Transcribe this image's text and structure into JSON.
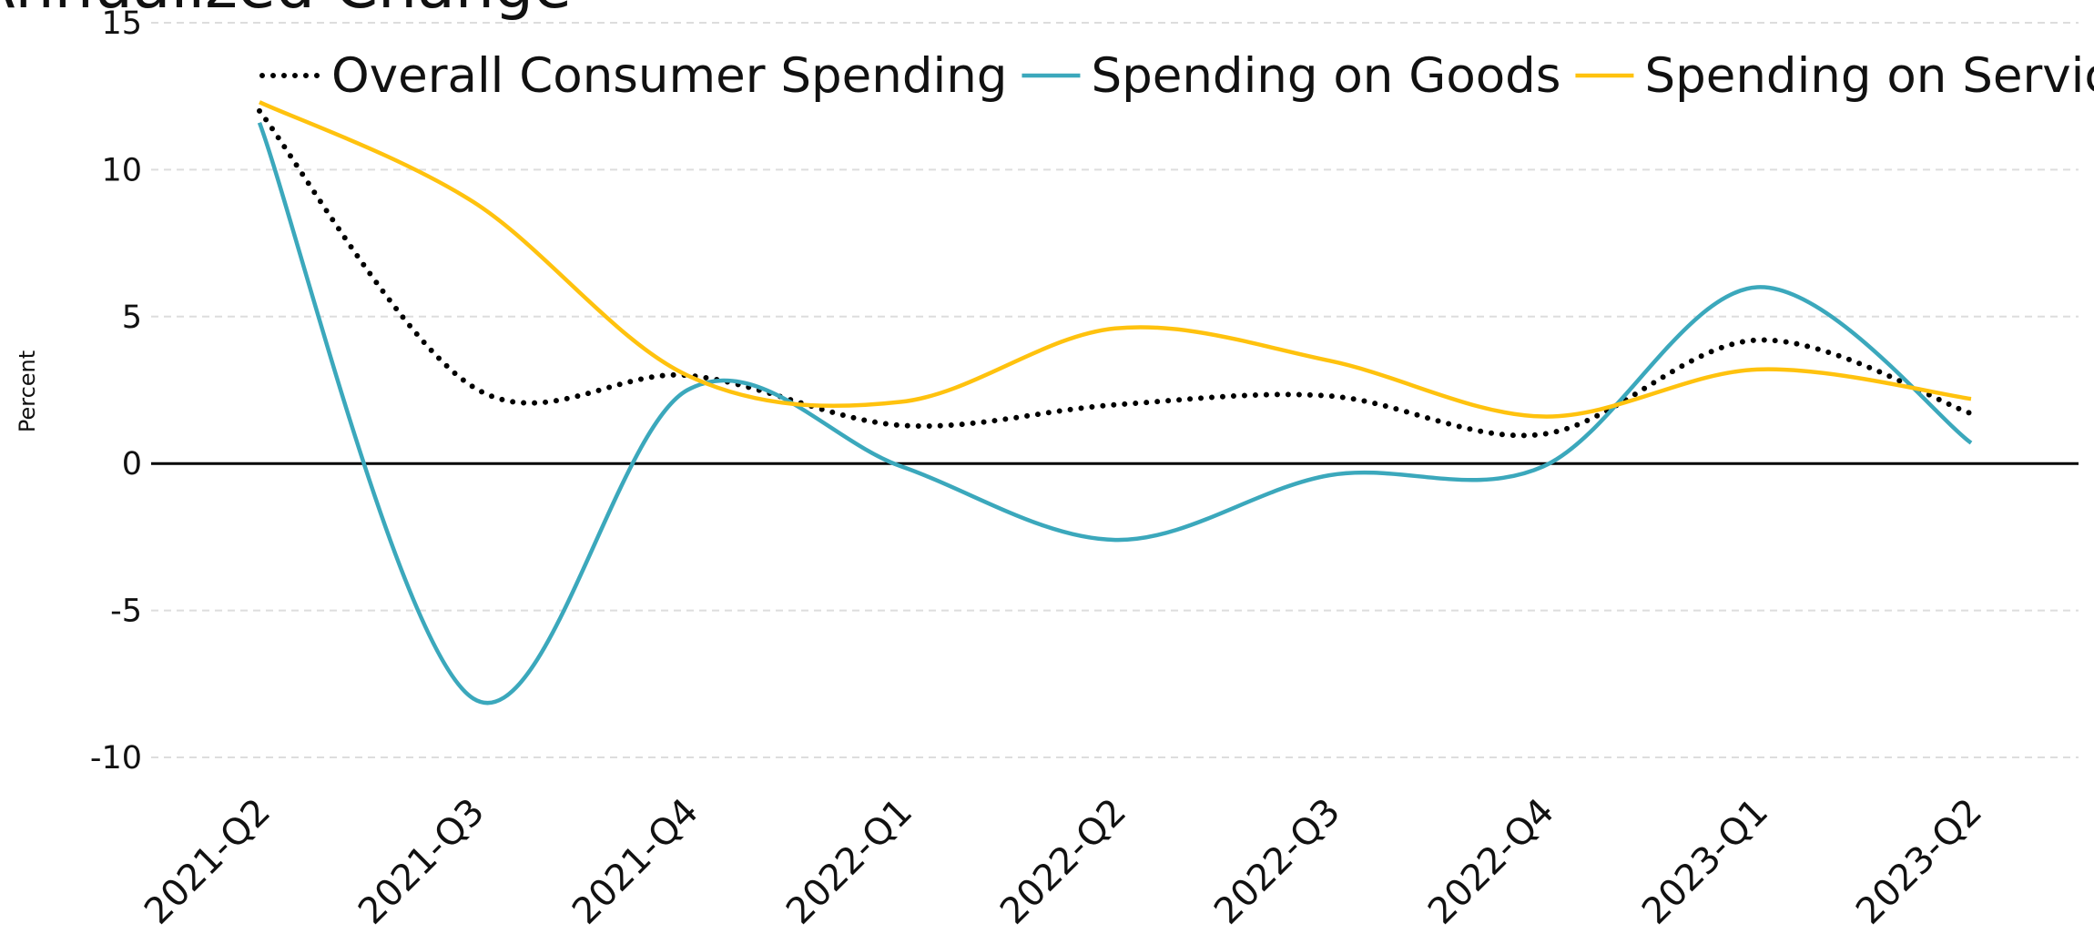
{
  "chart_data": {
    "type": "line",
    "title": "Annualized Change",
    "ylabel": "Percent",
    "categories": [
      "2021-Q2",
      "2021-Q3",
      "2021-Q4",
      "2022-Q1",
      "2022-Q2",
      "2022-Q3",
      "2022-Q4",
      "2023-Q1",
      "2023-Q2"
    ],
    "series": [
      {
        "name": "Overall Consumer Spending",
        "color": "#000000",
        "values": [
          12.0,
          2.6,
          3.0,
          1.3,
          2.0,
          2.3,
          1.0,
          4.2,
          1.7
        ]
      },
      {
        "name": "Spending on Goods",
        "color": "#3ba8bc",
        "values": [
          11.6,
          -8.0,
          2.5,
          -0.1,
          -2.6,
          -0.4,
          -0.1,
          6.0,
          0.7
        ]
      },
      {
        "name": "Spending on Services",
        "color": "#ffc20e",
        "values": [
          12.3,
          8.9,
          3.0,
          2.1,
          4.6,
          3.5,
          1.6,
          3.2,
          2.2
        ]
      }
    ],
    "ylim": [
      -10,
      15
    ],
    "yticks": [
      -10,
      -5,
      0,
      5,
      10,
      15
    ],
    "grid": true,
    "legend": "top"
  }
}
